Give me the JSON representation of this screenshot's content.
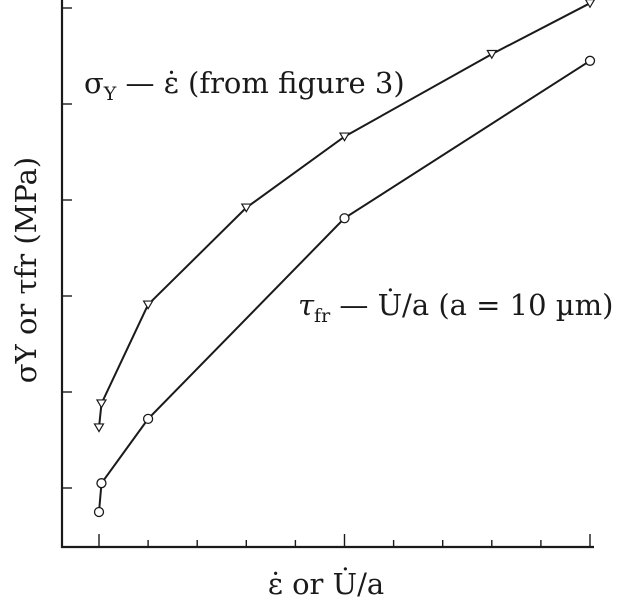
{
  "chart_data": {
    "type": "line",
    "title": "",
    "xlabel": "ε̇ or U̇/a",
    "ylabel": "σY or τfr (MPa)",
    "ylim": [
      0,
      5.6
    ],
    "xlim": [
      -0.15,
      10.15
    ],
    "grid": false,
    "legend": "none",
    "series": [
      {
        "name": "σY — ε̇ (from figure 3)",
        "marker": "triangle-down",
        "x": [
          0.0,
          0.05,
          1.0,
          3.0,
          5.0,
          8.0,
          10.0
        ],
        "y": [
          0.63,
          0.88,
          1.91,
          2.92,
          3.66,
          4.52,
          5.05
        ]
      },
      {
        "name": "τfr — U̇/a (a = 10 µm)",
        "marker": "circle",
        "x": [
          0.0,
          0.05,
          1.0,
          5.0,
          10.0
        ],
        "y": [
          -0.25,
          0.05,
          0.72,
          2.81,
          4.45
        ]
      }
    ]
  },
  "labels": {
    "sigma_sym": "σ",
    "sigma_sub": "Y",
    "sigma_rest": " — ε̇ (from figure 3)",
    "tau_sym": "τ",
    "tau_sub": "fr",
    "tau_rest": " — U̇/a (a = 10 µm)",
    "xlabel": "ε̇ or U̇/a",
    "ylabel": "σY or τfr (MPa)"
  }
}
